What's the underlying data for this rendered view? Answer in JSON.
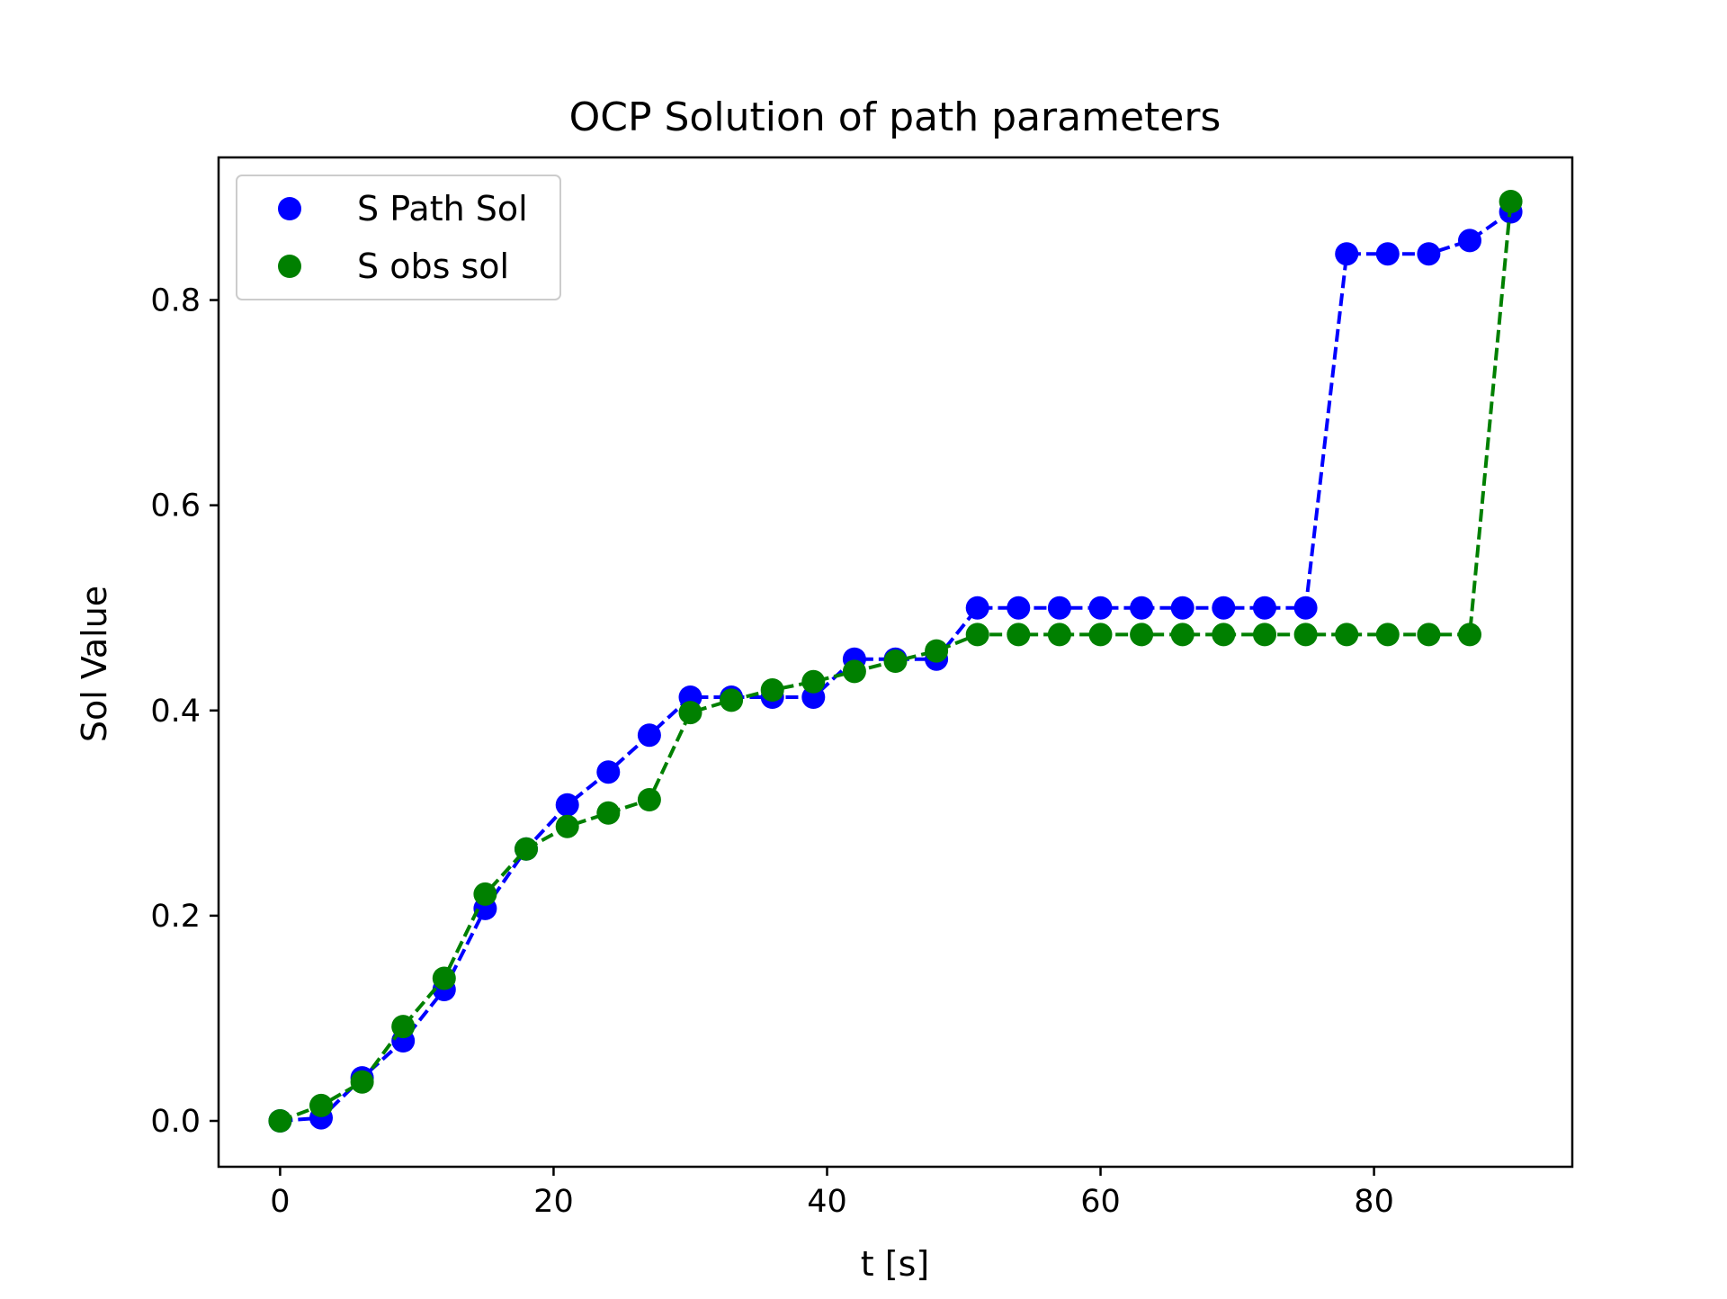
{
  "chart_data": {
    "type": "line",
    "title": "OCP Solution of path parameters",
    "xlabel": "t [s]",
    "ylabel": "Sol Value",
    "xlim": [
      -4.5,
      94.5
    ],
    "ylim": [
      -0.0447,
      0.939
    ],
    "xticks": [
      0,
      20,
      40,
      60,
      80
    ],
    "xtick_labels": [
      "0",
      "20",
      "40",
      "60",
      "80"
    ],
    "yticks": [
      0.0,
      0.2,
      0.4,
      0.6,
      0.8
    ],
    "ytick_labels": [
      "0.0",
      "0.2",
      "0.4",
      "0.6",
      "0.8"
    ],
    "grid": false,
    "legend_position": "upper left",
    "line_style": "dashed",
    "marker": "circle",
    "x": [
      0,
      3,
      6,
      9,
      12,
      15,
      18,
      21,
      24,
      27,
      30,
      33,
      36,
      39,
      42,
      45,
      48,
      51,
      54,
      57,
      60,
      63,
      66,
      69,
      72,
      75,
      78,
      81,
      84,
      87,
      90
    ],
    "series": [
      {
        "name": "S Path Sol",
        "color": "#0000ff",
        "values": [
          0.0,
          0.003,
          0.042,
          0.078,
          0.128,
          0.207,
          0.265,
          0.308,
          0.34,
          0.376,
          0.413,
          0.413,
          0.413,
          0.413,
          0.45,
          0.45,
          0.45,
          0.5,
          0.5,
          0.5,
          0.5,
          0.5,
          0.5,
          0.5,
          0.5,
          0.5,
          0.845,
          0.845,
          0.845,
          0.858,
          0.886
        ]
      },
      {
        "name": "S obs sol",
        "color": "#008000",
        "values": [
          0.0,
          0.015,
          0.038,
          0.092,
          0.139,
          0.221,
          0.265,
          0.287,
          0.3,
          0.313,
          0.398,
          0.41,
          0.42,
          0.428,
          0.438,
          0.448,
          0.458,
          0.474,
          0.474,
          0.474,
          0.474,
          0.474,
          0.474,
          0.474,
          0.474,
          0.474,
          0.474,
          0.474,
          0.474,
          0.474,
          0.896
        ]
      }
    ]
  }
}
